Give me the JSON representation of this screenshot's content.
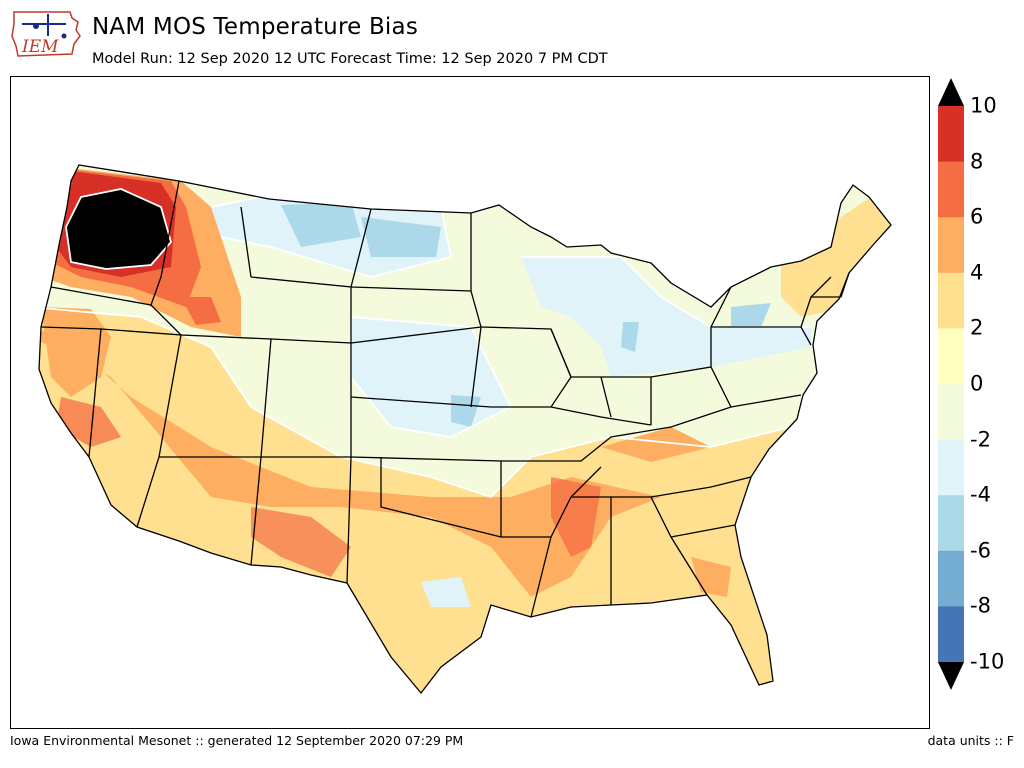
{
  "header": {
    "logo_text": "IEM",
    "title": "NAM MOS Temperature Bias",
    "subtitle": "Model Run: 12 Sep 2020 12 UTC Forecast Time: 12 Sep 2020 7 PM CDT"
  },
  "colorbar": {
    "levels": [
      "10",
      "8",
      "6",
      "4",
      "2",
      "0",
      "-2",
      "-4",
      "-6",
      "-8",
      "-10"
    ],
    "colors_top_to_bottom": [
      "#d73027",
      "#f46d43",
      "#fdae61",
      "#fee090",
      "#ffffbf",
      "#f4fadc",
      "#e0f3f8",
      "#abd9e9",
      "#74add1",
      "#4575b4"
    ],
    "over_color": "#000000",
    "under_color": "#000000"
  },
  "footer": {
    "left": "Iowa Environmental Mesonet :: generated 12 September 2020 07:29 PM",
    "right": "data units :: F"
  }
}
